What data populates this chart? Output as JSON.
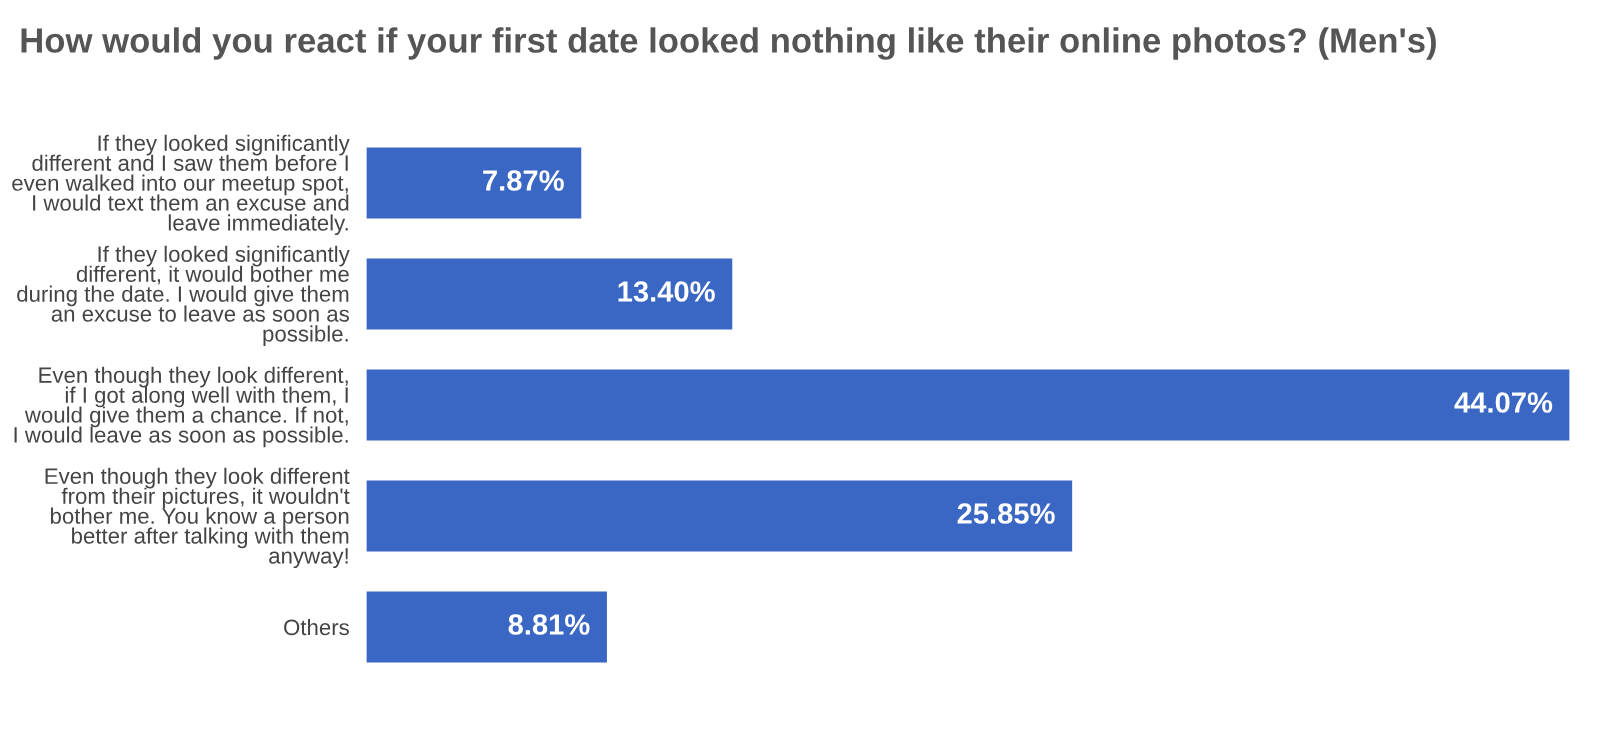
{
  "chart_data": {
    "type": "bar",
    "orientation": "horizontal",
    "title": "How would you react if your first date looked nothing like their online photos? (Men's)",
    "categories": [
      "If they looked significantly different and I saw them before I even walked into our meetup spot, I would text them an excuse and leave immediately.",
      "If they looked significantly different, it would bother me during the date. I would give them an excuse to leave as soon as possible.",
      "Even though they look different, if I got along well with them, I would give them a chance. If not, I would leave as soon as possible.",
      "Even though they look different from their pictures, it wouldn't bother me. You know a person better after talking with them anyway!",
      "Others"
    ],
    "values": [
      7.87,
      13.4,
      44.07,
      25.85,
      8.81
    ],
    "value_labels": [
      "7.87%",
      "13.40%",
      "44.07%",
      "25.85%",
      "8.81%"
    ],
    "color": "#3b67c4",
    "grid": false,
    "legend": false
  }
}
